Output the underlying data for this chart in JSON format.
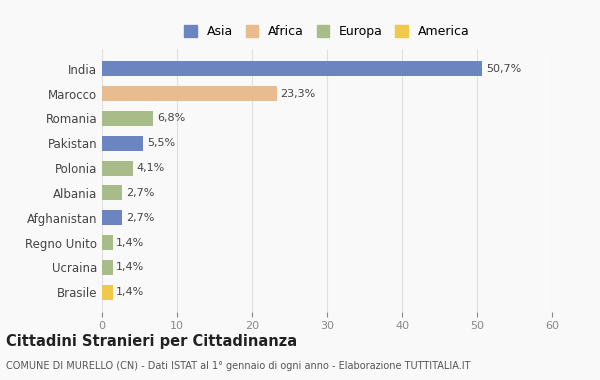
{
  "categories": [
    "India",
    "Marocco",
    "Romania",
    "Pakistan",
    "Polonia",
    "Albania",
    "Afghanistan",
    "Regno Unito",
    "Ucraina",
    "Brasile"
  ],
  "values": [
    50.7,
    23.3,
    6.8,
    5.5,
    4.1,
    2.7,
    2.7,
    1.4,
    1.4,
    1.4
  ],
  "labels": [
    "50,7%",
    "23,3%",
    "6,8%",
    "5,5%",
    "4,1%",
    "2,7%",
    "2,7%",
    "1,4%",
    "1,4%",
    "1,4%"
  ],
  "colors": [
    "#6b85c0",
    "#e8bc8e",
    "#a8bc8a",
    "#6b85c0",
    "#a8bc8a",
    "#a8bc8a",
    "#6b85c0",
    "#a8bc8a",
    "#a8bc8a",
    "#f0c84a"
  ],
  "legend_labels": [
    "Asia",
    "Africa",
    "Europa",
    "America"
  ],
  "legend_colors": [
    "#6b85c0",
    "#e8bc8e",
    "#a8bc8a",
    "#f0c84a"
  ],
  "xlim": [
    0,
    60
  ],
  "xticks": [
    0,
    10,
    20,
    30,
    40,
    50,
    60
  ],
  "title": "Cittadini Stranieri per Cittadinanza",
  "subtitle": "COMUNE DI MURELLO (CN) - Dati ISTAT al 1° gennaio di ogni anno - Elaborazione TUTTITALIA.IT",
  "bg_color": "#f9f9f9",
  "grid_color": "#e0e0e0",
  "bar_height": 0.6
}
